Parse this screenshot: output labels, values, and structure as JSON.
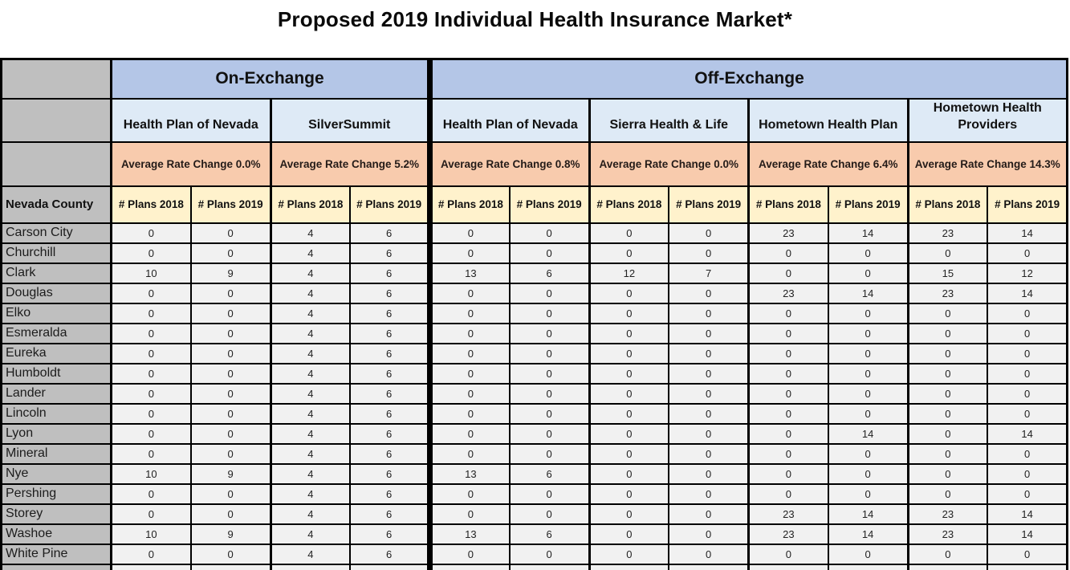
{
  "page": {
    "title": "Proposed 2019 Individual Health Insurance Market*"
  },
  "table": {
    "county_header": "Nevada County",
    "plan_col_headers": [
      "# Plans 2018",
      "# Plans 2019"
    ],
    "sections": [
      {
        "label": "On-Exchange",
        "insurers": [
          {
            "name": "Health Plan of Nevada",
            "rate_change": "Average Rate Change 0.0%"
          },
          {
            "name": "SilverSummit",
            "rate_change": "Average Rate Change 5.2%"
          }
        ]
      },
      {
        "label": "Off-Exchange",
        "insurers": [
          {
            "name": "Health Plan of Nevada",
            "rate_change": "Average Rate Change 0.8%"
          },
          {
            "name": "Sierra Health & Life",
            "rate_change": "Average Rate Change 0.0%"
          },
          {
            "name": "Hometown Health Plan",
            "rate_change": "Average Rate Change 6.4%"
          },
          {
            "name": "Hometown Health Providers",
            "rate_change": "Average Rate Change 14.3%"
          }
        ]
      }
    ],
    "rows": [
      {
        "county": "Carson City",
        "values": [
          0,
          0,
          4,
          6,
          0,
          0,
          0,
          0,
          23,
          14,
          23,
          14
        ]
      },
      {
        "county": "Churchill",
        "values": [
          0,
          0,
          4,
          6,
          0,
          0,
          0,
          0,
          0,
          0,
          0,
          0
        ]
      },
      {
        "county": "Clark",
        "values": [
          10,
          9,
          4,
          6,
          13,
          6,
          12,
          7,
          0,
          0,
          15,
          12
        ]
      },
      {
        "county": "Douglas",
        "values": [
          0,
          0,
          4,
          6,
          0,
          0,
          0,
          0,
          23,
          14,
          23,
          14
        ]
      },
      {
        "county": "Elko",
        "values": [
          0,
          0,
          4,
          6,
          0,
          0,
          0,
          0,
          0,
          0,
          0,
          0
        ]
      },
      {
        "county": "Esmeralda",
        "values": [
          0,
          0,
          4,
          6,
          0,
          0,
          0,
          0,
          0,
          0,
          0,
          0
        ]
      },
      {
        "county": "Eureka",
        "values": [
          0,
          0,
          4,
          6,
          0,
          0,
          0,
          0,
          0,
          0,
          0,
          0
        ]
      },
      {
        "county": "Humboldt",
        "values": [
          0,
          0,
          4,
          6,
          0,
          0,
          0,
          0,
          0,
          0,
          0,
          0
        ]
      },
      {
        "county": "Lander",
        "values": [
          0,
          0,
          4,
          6,
          0,
          0,
          0,
          0,
          0,
          0,
          0,
          0
        ]
      },
      {
        "county": "Lincoln",
        "values": [
          0,
          0,
          4,
          6,
          0,
          0,
          0,
          0,
          0,
          0,
          0,
          0
        ]
      },
      {
        "county": "Lyon",
        "values": [
          0,
          0,
          4,
          6,
          0,
          0,
          0,
          0,
          0,
          14,
          0,
          14
        ]
      },
      {
        "county": "Mineral",
        "values": [
          0,
          0,
          4,
          6,
          0,
          0,
          0,
          0,
          0,
          0,
          0,
          0
        ]
      },
      {
        "county": "Nye",
        "values": [
          10,
          9,
          4,
          6,
          13,
          6,
          0,
          0,
          0,
          0,
          0,
          0
        ]
      },
      {
        "county": "Pershing",
        "values": [
          0,
          0,
          4,
          6,
          0,
          0,
          0,
          0,
          0,
          0,
          0,
          0
        ]
      },
      {
        "county": "Storey",
        "values": [
          0,
          0,
          4,
          6,
          0,
          0,
          0,
          0,
          23,
          14,
          23,
          14
        ]
      },
      {
        "county": "Washoe",
        "values": [
          10,
          9,
          4,
          6,
          13,
          6,
          0,
          0,
          23,
          14,
          23,
          14
        ]
      },
      {
        "county": "White Pine",
        "values": [
          0,
          0,
          4,
          6,
          0,
          0,
          0,
          0,
          0,
          0,
          0,
          0
        ]
      }
    ]
  },
  "colors": {
    "exchange_header_bg": "#B4C6E7",
    "insurer_bg": "#DEEAF6",
    "rate_bg": "#F8CBAD",
    "plans_bg": "#FFF2CC",
    "county_bg": "#BFBFBF",
    "data_bg": "#F1F1F1",
    "border": "#000000"
  }
}
